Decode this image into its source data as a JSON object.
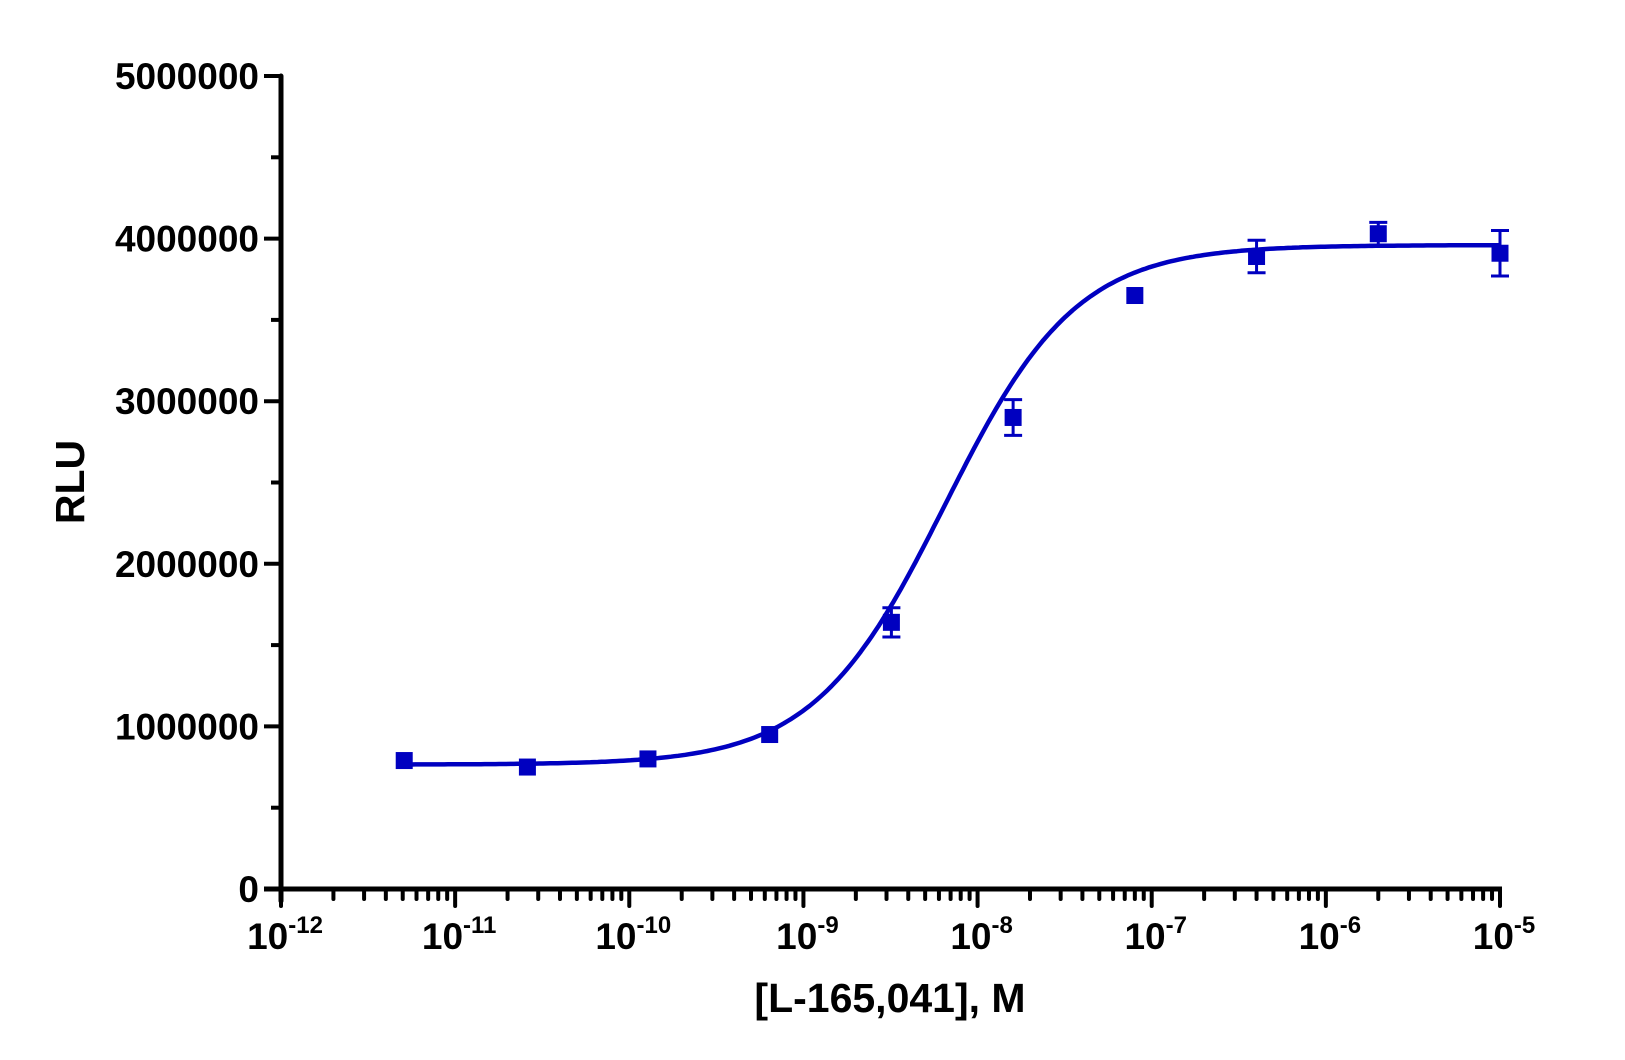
{
  "chart_data": {
    "type": "scatter",
    "title": "",
    "xlabel": "[L-165,041], M",
    "ylabel": "RLU",
    "xscale": "log",
    "xlim": [
      1e-12,
      1e-05
    ],
    "ylim": [
      0,
      5000000
    ],
    "grid": false,
    "legend": null,
    "x_tick_labels": [
      {
        "base": "10",
        "exp": "-12",
        "value": 1e-12
      },
      {
        "base": "10",
        "exp": "-11",
        "value": 1e-11
      },
      {
        "base": "10",
        "exp": "-10",
        "value": 1e-10
      },
      {
        "base": "10",
        "exp": "-9",
        "value": 1e-09
      },
      {
        "base": "10",
        "exp": "-8",
        "value": 1e-08
      },
      {
        "base": "10",
        "exp": "-7",
        "value": 1e-07
      },
      {
        "base": "10",
        "exp": "-6",
        "value": 1e-06
      },
      {
        "base": "10",
        "exp": "-5",
        "value": 1e-05
      }
    ],
    "y_tick_labels": [
      "0",
      "1000000",
      "2000000",
      "3000000",
      "4000000",
      "5000000"
    ],
    "y_ticks": [
      0,
      1000000,
      2000000,
      3000000,
      4000000,
      5000000
    ],
    "y_minor_ticks": [
      500000,
      1500000,
      2500000,
      3500000,
      4500000
    ],
    "series": [
      {
        "name": "L-165,041",
        "color": "#0000c0",
        "marker": "square",
        "points": [
          {
            "x": 5.1e-12,
            "y": 790000,
            "err": 0
          },
          {
            "x": 2.6e-11,
            "y": 750000,
            "err": 0
          },
          {
            "x": 1.28e-10,
            "y": 800000,
            "err": 0
          },
          {
            "x": 6.4e-10,
            "y": 950000,
            "err": 0
          },
          {
            "x": 3.2e-09,
            "y": 1640000,
            "err": 90000
          },
          {
            "x": 1.6e-08,
            "y": 2900000,
            "err": 110000
          },
          {
            "x": 8e-08,
            "y": 3650000,
            "err": 0
          },
          {
            "x": 4e-07,
            "y": 3890000,
            "err": 100000
          },
          {
            "x": 2e-06,
            "y": 4030000,
            "err": 70000
          },
          {
            "x": 1e-05,
            "y": 3910000,
            "err": 140000
          }
        ],
        "fit": {
          "model": "4PL sigmoidal dose-response",
          "bottom": 765000,
          "top": 3960000,
          "ec50": 6.5e-09,
          "hill": 1.15
        }
      }
    ]
  }
}
